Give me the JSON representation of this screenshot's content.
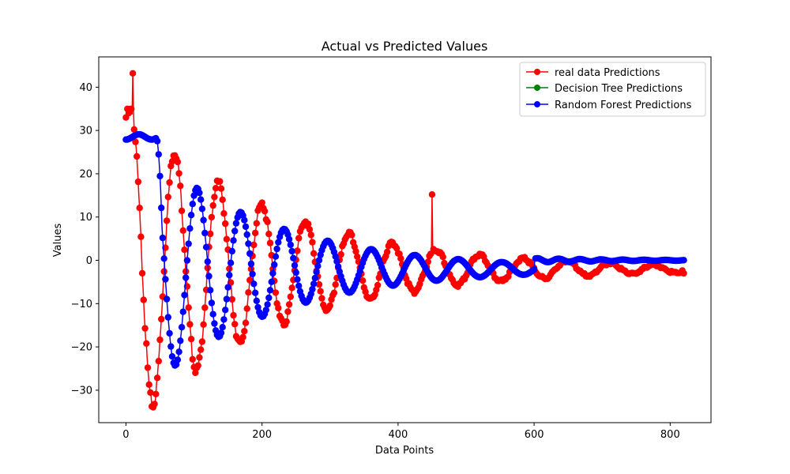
{
  "chart_data": {
    "type": "line",
    "title": "Actual vs Predicted Values",
    "xlabel": "Data Points",
    "ylabel": "Values",
    "xlim": [
      -40,
      860
    ],
    "ylim": [
      -37.5,
      47
    ],
    "xticks": [
      0,
      200,
      400,
      600,
      800
    ],
    "yticks": [
      -30,
      -20,
      -10,
      0,
      10,
      20,
      30,
      40
    ],
    "grid": false,
    "legend_position": "top-right",
    "n_points": 820,
    "series": [
      {
        "name": "real data Predictions",
        "color": "#ff0000",
        "marker": "circle",
        "model": "damped sinusoid",
        "period": 64,
        "amplitude_start": 38,
        "decay_rate": 0.0047,
        "phase_offset_peak_index": 8,
        "offset": -2,
        "noise_amp": 1.2,
        "spikes": [
          {
            "x": 10,
            "y": 43.2
          },
          {
            "x": 450,
            "y": 15.2
          },
          {
            "x": 820,
            "y": -3
          }
        ]
      },
      {
        "name": "Decision Tree Predictions",
        "color": "#008000",
        "marker": "circle",
        "hidden_behind": "Random Forest Predictions"
      },
      {
        "name": "Random Forest Predictions",
        "color": "#0000ff",
        "marker": "circle",
        "model": "damped sinusoid with flat start",
        "flat_until": 45,
        "flat_value": 28.5,
        "period": 64,
        "amplitude_start": 26,
        "decay_rate": 0.0055,
        "peak_index": 105,
        "offset": -2,
        "flat_after": 600,
        "flat_after_value": 0
      }
    ]
  }
}
